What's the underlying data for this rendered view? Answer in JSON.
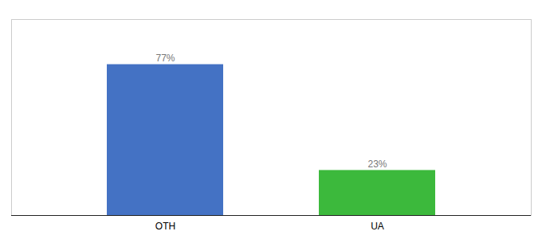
{
  "chart_data": {
    "type": "bar",
    "categories": [
      "OTH",
      "UA"
    ],
    "values": [
      77,
      23
    ],
    "value_labels": [
      "77%",
      "23%"
    ],
    "colors": [
      "#4472c4",
      "#3cb93c"
    ],
    "ylim": [
      0,
      100
    ],
    "data_labels": true,
    "tick_labels": "x",
    "grid": false
  }
}
